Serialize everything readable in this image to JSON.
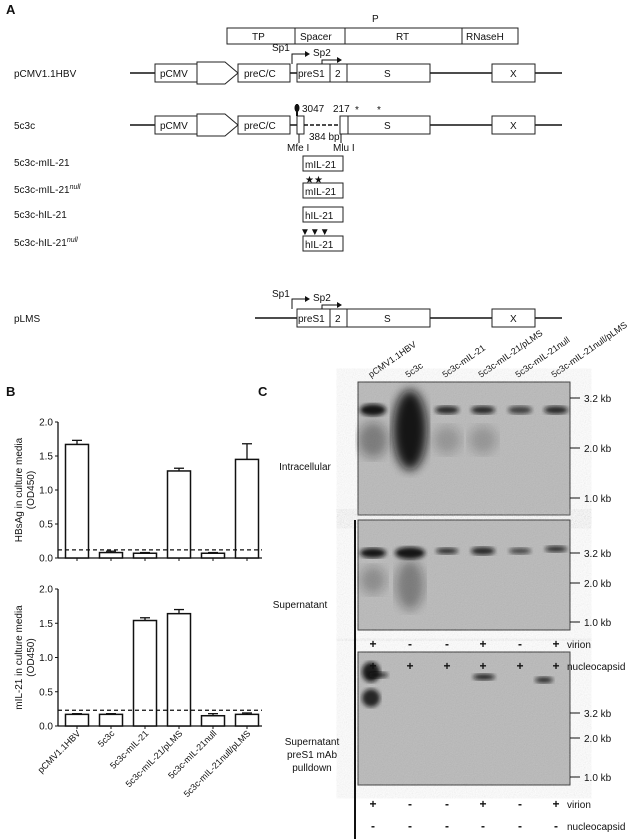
{
  "panel_labels": {
    "a": "A",
    "b": "B",
    "c": "C"
  },
  "panel_a": {
    "protein_domains": [
      "TP",
      "Spacer",
      "RT",
      "RNaseH"
    ],
    "polymerase_label": "P",
    "promoters": [
      "Sp1",
      "Sp2"
    ],
    "elements": {
      "pcmv": "pCMV",
      "prec": "preC/C",
      "pres1": "preS1",
      "pres2": "2",
      "s": "S",
      "x": "X"
    },
    "constructs": [
      "pCMV1.1HBV",
      "5c3c",
      "5c3c-mIL-21",
      "5c3c-mIL-21",
      "5c3c-hIL-21",
      "5c3c-hIL-21",
      "pLMS"
    ],
    "null_superscript": "null",
    "positions": {
      "p3047": "3047",
      "p217": "217",
      "deletion": "384 bp",
      "mfe": "Mfe I",
      "mlu": "Mlu I"
    },
    "inserts": [
      "mIL-21",
      "mIL-21",
      "hIL-21",
      "hIL-21"
    ],
    "mutation_marks": {
      "stars": "★★",
      "triangles": "▼▼▼"
    }
  },
  "chart_data": [
    {
      "type": "bar",
      "ylabel": "HBsAg in culture media",
      "ylabel2": "(OD450)",
      "categories": [
        "pCMV1.1HBV",
        "5c3c",
        "5c3c-mIL-21",
        "5c3c-mIL-21/pLMS",
        "5c3c-mIL-21null",
        "5c3c-mIL-21null/pLMS"
      ],
      "values": [
        1.67,
        0.08,
        0.07,
        1.28,
        0.07,
        1.45
      ],
      "errors": [
        0.06,
        0.02,
        0.01,
        0.04,
        0.01,
        0.23
      ],
      "cutoff": 0.12,
      "ylim": [
        0,
        2.0
      ],
      "yticks": [
        "0.0",
        "0.5",
        "1.0",
        "1.5",
        "2.0"
      ]
    },
    {
      "type": "bar",
      "ylabel": "mIL-21 in culture media",
      "ylabel2": "(OD450)",
      "categories": [
        "pCMV1.1HBV",
        "5c3c",
        "5c3c-mIL-21",
        "5c3c-mIL-21/pLMS",
        "5c3c-mIL-21null",
        "5c3c-mIL-21null/pLMS"
      ],
      "values": [
        0.17,
        0.17,
        1.54,
        1.64,
        0.15,
        0.17
      ],
      "errors": [
        0.01,
        0.01,
        0.04,
        0.06,
        0.03,
        0.02
      ],
      "cutoff": 0.23,
      "ylim": [
        0,
        2.0
      ],
      "yticks": [
        "0.0",
        "0.5",
        "1.0",
        "1.5",
        "2.0"
      ]
    }
  ],
  "panel_c": {
    "lanes": [
      "pCMV1.1HBV",
      "5c3c",
      "5c3c-mIL-21",
      "5c3c-mIL-21/pLMS",
      "5c3c-mIL-21null",
      "5c3c-mIL-21null/pLMS"
    ],
    "blots": [
      "Intracellular",
      "Supernatant",
      "Supernatant",
      "preS1 mAb",
      "pulldown"
    ],
    "markers": [
      "3.2 kb",
      "2.0 kb",
      "1.0 kb"
    ],
    "supernatant_virion": [
      "+",
      "-",
      "-",
      "+",
      "-",
      "+"
    ],
    "supernatant_nucleocapsid": [
      "+",
      "+",
      "+",
      "+",
      "+",
      "+"
    ],
    "pulldown_virion": [
      "+",
      "-",
      "-",
      "+",
      "-",
      "+"
    ],
    "pulldown_nucleocapsid": [
      "-",
      "-",
      "-",
      "-",
      "-",
      "-"
    ],
    "row_labels": {
      "virion": "virion",
      "nucleocapsid": "nucleocapsid"
    }
  }
}
